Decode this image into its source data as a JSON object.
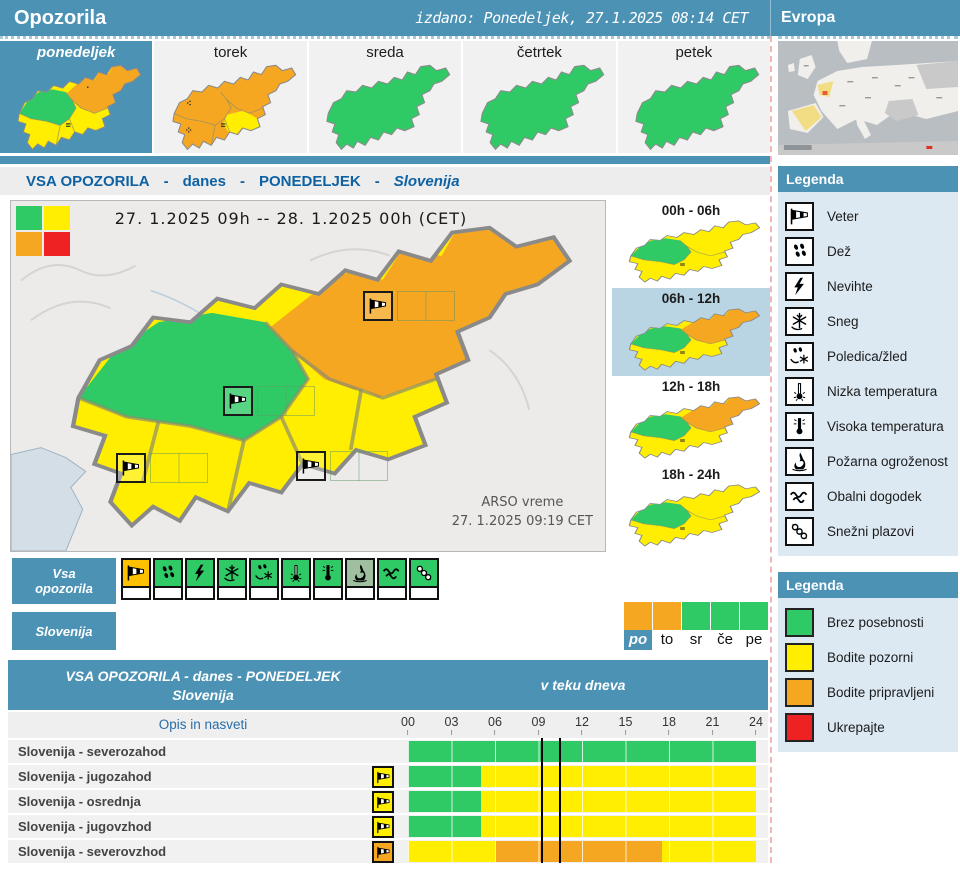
{
  "header": {
    "app_title": "Opozorila",
    "issued": "izdano: Ponedeljek, 27.1.2025 08:14 CET",
    "europe_label": "Evropa"
  },
  "colors": {
    "green": "#2fca66",
    "yellow": "#ffee00",
    "orange": "#f6a722",
    "red": "#ee2222"
  },
  "day_tabs": [
    {
      "label": "ponedeljek",
      "selected": true,
      "map": {
        "base": "#ffee00",
        "nw": "#2fca66",
        "ne": "#f6a722",
        "se": "#ffee00"
      }
    },
    {
      "label": "torek",
      "selected": false,
      "map": {
        "base": "#f6a722",
        "nw": "#f6a722",
        "ne": "#f6a722",
        "se": "#ffee00"
      }
    },
    {
      "label": "sreda",
      "selected": false,
      "map": {
        "base": "#2fca66",
        "nw": "#2fca66",
        "ne": "#2fca66",
        "se": "#2fca66"
      }
    },
    {
      "label": "četrtek",
      "selected": false,
      "map": {
        "base": "#2fca66",
        "nw": "#2fca66",
        "ne": "#2fca66",
        "se": "#2fca66"
      }
    },
    {
      "label": "petek",
      "selected": false,
      "map": {
        "base": "#2fca66",
        "nw": "#2fca66",
        "ne": "#2fca66",
        "se": "#2fca66"
      }
    }
  ],
  "warnings_bar": {
    "part1": "VSA OPOZORILA",
    "sep": "-",
    "part2": "danes",
    "part3": "PONEDELJEK",
    "part4": "Slovenija"
  },
  "main_map": {
    "title": "27. 1.2025  09h  --  28. 1.2025  00h    (CET)",
    "credit1": "ARSO vreme",
    "credit2": "27. 1.2025  09:19 CET",
    "map": {
      "base": "#ffee00",
      "nw": "#2fca66",
      "ne": "#f6a722",
      "se": "#ffee00"
    }
  },
  "periods": [
    {
      "label": "00h - 06h",
      "highlighted": false,
      "map": {
        "base": "#ffee00",
        "nw": "#2fca66",
        "ne": "#ffee00",
        "se": "#ffee00"
      }
    },
    {
      "label": "06h - 12h",
      "highlighted": true,
      "map": {
        "base": "#ffee00",
        "nw": "#2fca66",
        "ne": "#f6a722",
        "se": "#ffee00"
      }
    },
    {
      "label": "12h - 18h",
      "highlighted": false,
      "map": {
        "base": "#ffee00",
        "nw": "#2fca66",
        "ne": "#f6a722",
        "se": "#ffee00"
      }
    },
    {
      "label": "18h - 24h",
      "highlighted": false,
      "map": {
        "base": "#ffee00",
        "nw": "#2fca66",
        "ne": "#ffee00",
        "se": "#ffee00"
      }
    }
  ],
  "legend_warnings": {
    "title": "Legenda",
    "items": [
      {
        "label": "Veter",
        "icon": "windsock-icon"
      },
      {
        "label": "Dež",
        "icon": "rain-icon"
      },
      {
        "label": "Nevihte",
        "icon": "thunderstorm-icon"
      },
      {
        "label": "Sneg",
        "icon": "snowflake-icon"
      },
      {
        "label": "Poledica/žled",
        "icon": "glaze-ice-icon"
      },
      {
        "label": "Nizka temperatura",
        "icon": "low-temperature-icon"
      },
      {
        "label": "Visoka temperatura",
        "icon": "high-temperature-icon"
      },
      {
        "label": "Požarna ogroženost",
        "icon": "fire-risk-icon"
      },
      {
        "label": "Obalni dogodek",
        "icon": "coastal-event-icon"
      },
      {
        "label": "Snežni plazovi",
        "icon": "avalanche-icon"
      }
    ]
  },
  "legend_levels": {
    "title": "Legenda",
    "items": [
      {
        "label": "Brez posebnosti",
        "color": "#2fca66"
      },
      {
        "label": "Bodite pozorni",
        "color": "#ffee00"
      },
      {
        "label": "Bodite pripravljeni",
        "color": "#f6a722"
      },
      {
        "label": "Ukrepajte",
        "color": "#ee2222"
      }
    ]
  },
  "filters": {
    "all_label_line1": "Vsa",
    "all_label_line2": "opozorila",
    "region_label": "Slovenija",
    "type_tiles": [
      {
        "icon": "windsock-icon",
        "color": "#fdc100"
      },
      {
        "icon": "rain-icon",
        "color": "#2fca66"
      },
      {
        "icon": "thunderstorm-icon",
        "color": "#2fca66"
      },
      {
        "icon": "snowflake-icon",
        "color": "#2fca66"
      },
      {
        "icon": "glaze-ice-icon",
        "color": "#2fca66"
      },
      {
        "icon": "low-temperature-icon",
        "color": "#2fca66"
      },
      {
        "icon": "high-temperature-icon",
        "color": "#2fca66"
      },
      {
        "icon": "fire-risk-icon",
        "color": "#9fbf9f"
      },
      {
        "icon": "coastal-event-icon",
        "color": "#2fca66"
      },
      {
        "icon": "avalanche-icon",
        "color": "#2fca66"
      }
    ],
    "day_strip": [
      {
        "label": "po",
        "color": "#f6a722",
        "selected": true
      },
      {
        "label": "to",
        "color": "#f6a722",
        "selected": false
      },
      {
        "label": "sr",
        "color": "#2fca66",
        "selected": false
      },
      {
        "label": "če",
        "color": "#2fca66",
        "selected": false
      },
      {
        "label": "pe",
        "color": "#2fca66",
        "selected": false
      }
    ]
  },
  "table": {
    "header_line1": "VSA OPOZORILA - danes - PONEDELJEK",
    "header_line2": "Slovenija",
    "header_right": "v teku dneva",
    "subheader_left": "Opis in nasveti",
    "hours": [
      "00",
      "03",
      "06",
      "09",
      "12",
      "15",
      "18",
      "21",
      "24"
    ],
    "now_lines": [
      9.2,
      10.4
    ],
    "rows": [
      {
        "label": "Slovenija - severozahod",
        "icon": null,
        "segments": [
          {
            "from": 0,
            "to": 24,
            "color": "#2fca66"
          }
        ]
      },
      {
        "label": "Slovenija - jugozahod",
        "icon": "windsock-icon",
        "icon_color": "#ffee00",
        "segments": [
          {
            "from": 0,
            "to": 5,
            "color": "#2fca66"
          },
          {
            "from": 5,
            "to": 24,
            "color": "#ffee00"
          }
        ]
      },
      {
        "label": "Slovenija - osrednja",
        "icon": "windsock-icon",
        "icon_color": "#ffee00",
        "segments": [
          {
            "from": 0,
            "to": 5,
            "color": "#2fca66"
          },
          {
            "from": 5,
            "to": 24,
            "color": "#ffee00"
          }
        ]
      },
      {
        "label": "Slovenija - jugovzhod",
        "icon": "windsock-icon",
        "icon_color": "#ffee00",
        "segments": [
          {
            "from": 0,
            "to": 5,
            "color": "#2fca66"
          },
          {
            "from": 5,
            "to": 24,
            "color": "#ffee00"
          }
        ]
      },
      {
        "label": "Slovenija - severovzhod",
        "icon": "windsock-icon",
        "icon_color": "#f6a722",
        "segments": [
          {
            "from": 0,
            "to": 6,
            "color": "#ffee00"
          },
          {
            "from": 6,
            "to": 17.5,
            "color": "#f6a722"
          },
          {
            "from": 17.5,
            "to": 24,
            "color": "#ffee00"
          }
        ]
      }
    ]
  }
}
